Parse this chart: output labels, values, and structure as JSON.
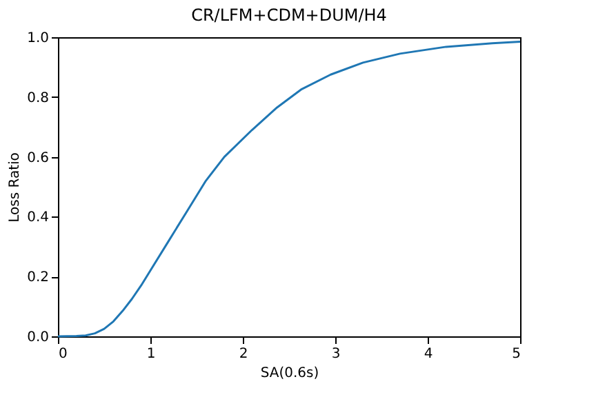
{
  "chart_data": {
    "type": "line",
    "title": "CR/LFM+CDM+DUM/H4",
    "xlabel": "SA(0.6s)",
    "ylabel": "Loss Ratio",
    "x": [
      0,
      0.2,
      0.3,
      0.4,
      0.5,
      0.6,
      0.7,
      0.8,
      0.9,
      1.0,
      1.2,
      1.4,
      1.6,
      1.8,
      2.1,
      2.37,
      2.63,
      2.95,
      3.3,
      3.7,
      4.2,
      4.7,
      5.0
    ],
    "series": [
      {
        "color": "#1f77b4",
        "values": [
          0,
          0.001,
          0.003,
          0.01,
          0.025,
          0.05,
          0.085,
          0.125,
          0.17,
          0.22,
          0.32,
          0.42,
          0.52,
          0.6,
          0.69,
          0.765,
          0.825,
          0.875,
          0.915,
          0.945,
          0.968,
          0.98,
          0.985
        ]
      }
    ],
    "xlim": [
      0,
      5
    ],
    "ylim": [
      0,
      1.0
    ],
    "xticks": [
      0,
      1,
      2,
      3,
      4,
      5
    ],
    "yticks": [
      {
        "value": 0,
        "label": "0.0"
      },
      {
        "value": 0.2,
        "label": "0.2"
      },
      {
        "value": 0.4,
        "label": "0.4"
      },
      {
        "value": 0.6,
        "label": "0.6"
      },
      {
        "value": 0.8,
        "label": "0.8"
      },
      {
        "value": 1.0,
        "label": "1.0"
      }
    ],
    "grid": false,
    "marker": "none",
    "line_style": "solid"
  }
}
